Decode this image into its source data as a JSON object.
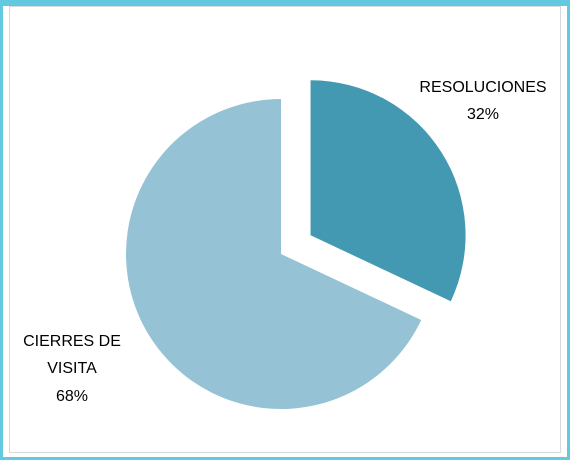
{
  "chart_data": {
    "type": "pie",
    "exploded": "RESOLUCIONES",
    "slices": [
      {
        "label_lines": [
          "RESOLUCIONES"
        ],
        "percent_label": "32%",
        "value": 32,
        "color": "#4499b2"
      },
      {
        "label_lines": [
          "CIERRES DE",
          "VISITA"
        ],
        "percent_label": "68%",
        "value": 68,
        "color": "#95c3d5"
      }
    ],
    "legend": "none"
  },
  "colors": {
    "border": "#62c9de",
    "background": "#ffffff"
  }
}
